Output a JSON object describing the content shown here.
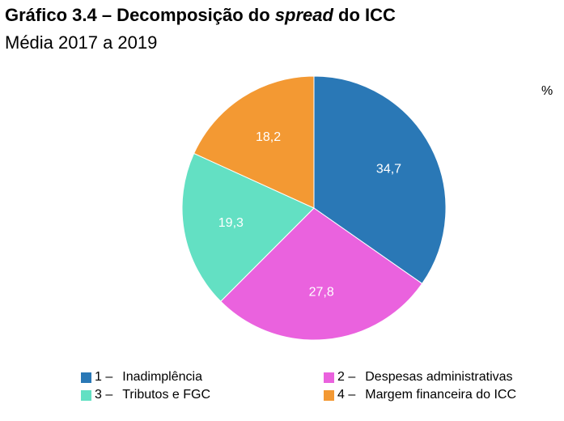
{
  "title": {
    "prefix": "Gráfico 3.4 – Decomposição do ",
    "emphasis": "spread",
    "suffix": " do ICC"
  },
  "subtitle": "Média 2017 a 2019",
  "unit": "%",
  "chart_data": {
    "type": "pie",
    "unit": "%",
    "slices": [
      {
        "id": "1",
        "label": "Inadimplência",
        "value": 34.7,
        "display": "34,7",
        "color": "#2a78b6"
      },
      {
        "id": "2",
        "label": "Despesas administrativas",
        "value": 27.8,
        "display": "27,8",
        "color": "#ea62de"
      },
      {
        "id": "3",
        "label": "Tributos e FGC",
        "value": 19.3,
        "display": "19,3",
        "color": "#63e0c3"
      },
      {
        "id": "4",
        "label": "Margem financeira do ICC",
        "value": 18.2,
        "display": "18,2",
        "color": "#f39933"
      }
    ],
    "legend_position": "bottom",
    "start": "12 o'clock",
    "direction": "clockwise"
  },
  "legend": [
    {
      "num": "1 –",
      "label": "Inadimplência"
    },
    {
      "num": "2 –",
      "label": "Despesas administrativas"
    },
    {
      "num": "3 –",
      "label": "Tributos e FGC"
    },
    {
      "num": "4 –",
      "label": "Margem financeira do ICC"
    }
  ]
}
